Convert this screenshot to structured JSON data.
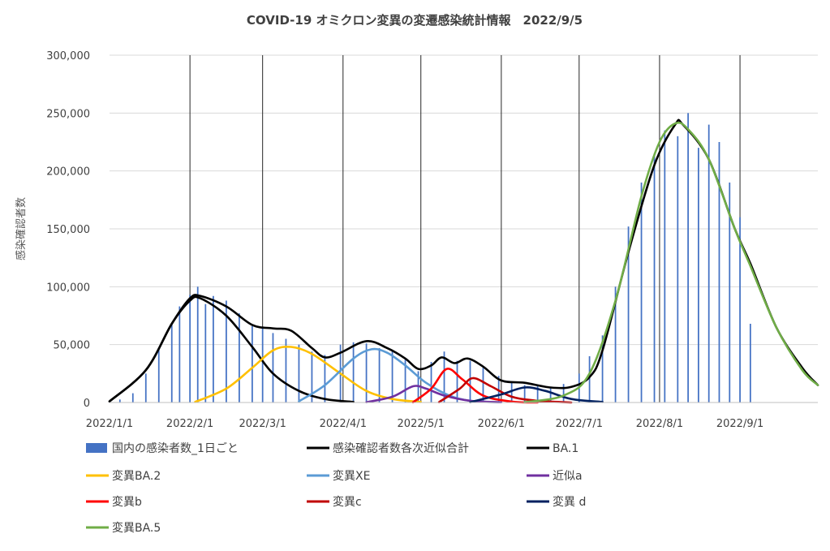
{
  "chart_data": {
    "type": "bar+line",
    "title": "COVID-19 オミクロン変異の変遷感染統計情報　2022/9/5",
    "ylabel": "感染確認者数",
    "xlabel": "",
    "ylim": [
      0,
      300000
    ],
    "yticks": [
      "0",
      "50,000",
      "100,000",
      "150,000",
      "200,000",
      "250,000",
      "300,000"
    ],
    "ytick_values": [
      0,
      50000,
      100000,
      150000,
      200000,
      250000,
      300000
    ],
    "xlim": [
      "2022-01-01",
      "2022-10-01"
    ],
    "xticks": [
      "2022/1/1",
      "2022/2/1",
      "2022/3/1",
      "2022/4/1",
      "2022/5/1",
      "2022/6/1",
      "2022/7/1",
      "2022/8/1",
      "2022/9/1"
    ],
    "xtick_dates": [
      "2022-01-01",
      "2022-02-01",
      "2022-03-01",
      "2022-04-01",
      "2022-05-01",
      "2022-06-01",
      "2022-07-01",
      "2022-08-01",
      "2022-09-01"
    ],
    "grid": "horizontal gridlines, vertical lines at month starts",
    "legend_position": "bottom",
    "bar_series": {
      "name": "国内の感染者数_1日ごと",
      "color": "#4472C4",
      "points": [
        [
          "2022-01-01",
          500
        ],
        [
          "2022-01-05",
          2600
        ],
        [
          "2022-01-10",
          8000
        ],
        [
          "2022-01-15",
          25000
        ],
        [
          "2022-01-20",
          46000
        ],
        [
          "2022-01-25",
          68000
        ],
        [
          "2022-01-28",
          83000
        ],
        [
          "2022-02-01",
          93000
        ],
        [
          "2022-02-04",
          100000
        ],
        [
          "2022-02-07",
          85000
        ],
        [
          "2022-02-10",
          92000
        ],
        [
          "2022-02-15",
          88000
        ],
        [
          "2022-02-20",
          77000
        ],
        [
          "2022-02-25",
          66000
        ],
        [
          "2022-03-01",
          64000
        ],
        [
          "2022-03-05",
          60000
        ],
        [
          "2022-03-10",
          55000
        ],
        [
          "2022-03-15",
          50000
        ],
        [
          "2022-03-20",
          44000
        ],
        [
          "2022-03-25",
          41000
        ],
        [
          "2022-03-31",
          50000
        ],
        [
          "2022-04-05",
          52000
        ],
        [
          "2022-04-10",
          51000
        ],
        [
          "2022-04-15",
          47000
        ],
        [
          "2022-04-20",
          44000
        ],
        [
          "2022-04-25",
          37000
        ],
        [
          "2022-04-30",
          27000
        ],
        [
          "2022-05-05",
          35000
        ],
        [
          "2022-05-10",
          44000
        ],
        [
          "2022-05-15",
          36000
        ],
        [
          "2022-05-20",
          36000
        ],
        [
          "2022-05-25",
          30000
        ],
        [
          "2022-05-31",
          23000
        ],
        [
          "2022-06-05",
          17000
        ],
        [
          "2022-06-10",
          15000
        ],
        [
          "2022-06-15",
          14000
        ],
        [
          "2022-06-20",
          13000
        ],
        [
          "2022-06-25",
          16000
        ],
        [
          "2022-07-01",
          25000
        ],
        [
          "2022-07-05",
          40000
        ],
        [
          "2022-07-10",
          58000
        ],
        [
          "2022-07-15",
          100000
        ],
        [
          "2022-07-20",
          152000
        ],
        [
          "2022-07-25",
          190000
        ],
        [
          "2022-07-30",
          215000
        ],
        [
          "2022-08-03",
          235000
        ],
        [
          "2022-08-08",
          230000
        ],
        [
          "2022-08-12",
          250000
        ],
        [
          "2022-08-16",
          220000
        ],
        [
          "2022-08-20",
          240000
        ],
        [
          "2022-08-24",
          225000
        ],
        [
          "2022-08-28",
          190000
        ],
        [
          "2022-09-01",
          160000
        ],
        [
          "2022-09-05",
          68000
        ]
      ]
    },
    "series": [
      {
        "name": "感染確認者数各次近似合計",
        "color": "#000000",
        "points": [
          [
            "2022-01-01",
            1000
          ],
          [
            "2022-01-15",
            28000
          ],
          [
            "2022-01-25",
            68000
          ],
          [
            "2022-02-01",
            90000
          ],
          [
            "2022-02-05",
            92000
          ],
          [
            "2022-02-15",
            83000
          ],
          [
            "2022-02-25",
            67000
          ],
          [
            "2022-03-05",
            64000
          ],
          [
            "2022-03-12",
            62000
          ],
          [
            "2022-03-20",
            47000
          ],
          [
            "2022-03-25",
            39000
          ],
          [
            "2022-03-31",
            43000
          ],
          [
            "2022-04-10",
            53000
          ],
          [
            "2022-04-18",
            47000
          ],
          [
            "2022-04-25",
            38000
          ],
          [
            "2022-04-30",
            29000
          ],
          [
            "2022-05-05",
            32000
          ],
          [
            "2022-05-09",
            39000
          ],
          [
            "2022-05-14",
            34000
          ],
          [
            "2022-05-19",
            38000
          ],
          [
            "2022-05-25",
            31000
          ],
          [
            "2022-06-01",
            19000
          ],
          [
            "2022-06-10",
            17000
          ],
          [
            "2022-06-20",
            13000
          ],
          [
            "2022-06-28",
            13500
          ],
          [
            "2022-07-05",
            22000
          ],
          [
            "2022-07-10",
            45000
          ],
          [
            "2022-07-20",
            130000
          ],
          [
            "2022-07-30",
            205000
          ],
          [
            "2022-08-07",
            240000
          ],
          [
            "2022-08-10",
            240000
          ],
          [
            "2022-08-20",
            210000
          ],
          [
            "2022-08-30",
            150000
          ],
          [
            "2022-09-05",
            120000
          ],
          [
            "2022-09-15",
            65000
          ],
          [
            "2022-09-25",
            30000
          ],
          [
            "2022-10-01",
            15000
          ]
        ]
      },
      {
        "name": "BA.1",
        "color": "#000000",
        "points": [
          [
            "2022-01-01",
            1000
          ],
          [
            "2022-01-15",
            28000
          ],
          [
            "2022-01-25",
            68000
          ],
          [
            "2022-02-01",
            88000
          ],
          [
            "2022-02-05",
            90000
          ],
          [
            "2022-02-15",
            75000
          ],
          [
            "2022-02-25",
            48000
          ],
          [
            "2022-03-05",
            25000
          ],
          [
            "2022-03-15",
            10000
          ],
          [
            "2022-03-25",
            3000
          ],
          [
            "2022-04-05",
            500
          ]
        ]
      },
      {
        "name": "変異BA.2",
        "color": "#FFC000",
        "points": [
          [
            "2022-02-03",
            500
          ],
          [
            "2022-02-15",
            12000
          ],
          [
            "2022-02-25",
            30000
          ],
          [
            "2022-03-05",
            45000
          ],
          [
            "2022-03-12",
            48000
          ],
          [
            "2022-03-20",
            42000
          ],
          [
            "2022-03-31",
            25000
          ],
          [
            "2022-04-10",
            10000
          ],
          [
            "2022-04-20",
            3000
          ],
          [
            "2022-05-01",
            500
          ]
        ]
      },
      {
        "name": "変異XE",
        "color": "#5B9BD5",
        "points": [
          [
            "2022-03-15",
            1000
          ],
          [
            "2022-03-25",
            15000
          ],
          [
            "2022-04-05",
            38000
          ],
          [
            "2022-04-12",
            46000
          ],
          [
            "2022-04-18",
            43000
          ],
          [
            "2022-04-25",
            32000
          ],
          [
            "2022-05-03",
            17000
          ],
          [
            "2022-05-12",
            6000
          ],
          [
            "2022-05-20",
            1500
          ],
          [
            "2022-05-31",
            200
          ]
        ]
      },
      {
        "name": "近似a",
        "color": "#7030A0",
        "points": [
          [
            "2022-04-10",
            300
          ],
          [
            "2022-04-20",
            5000
          ],
          [
            "2022-04-28",
            14000
          ],
          [
            "2022-05-03",
            12000
          ],
          [
            "2022-05-10",
            6000
          ],
          [
            "2022-05-20",
            1500
          ],
          [
            "2022-06-01",
            200
          ]
        ]
      },
      {
        "name": "変異b",
        "color": "#FF0000",
        "points": [
          [
            "2022-04-28",
            200
          ],
          [
            "2022-05-05",
            12000
          ],
          [
            "2022-05-11",
            29000
          ],
          [
            "2022-05-17",
            20000
          ],
          [
            "2022-05-25",
            6000
          ],
          [
            "2022-06-05",
            800
          ],
          [
            "2022-06-15",
            0
          ]
        ]
      },
      {
        "name": "変異c",
        "color": "#C00000",
        "points": [
          [
            "2022-05-08",
            300
          ],
          [
            "2022-05-16",
            12000
          ],
          [
            "2022-05-21",
            21000
          ],
          [
            "2022-05-28",
            14000
          ],
          [
            "2022-06-05",
            5000
          ],
          [
            "2022-06-15",
            1500
          ],
          [
            "2022-06-28",
            0
          ]
        ]
      },
      {
        "name": "変異 d",
        "color": "#002060",
        "points": [
          [
            "2022-05-20",
            300
          ],
          [
            "2022-06-01",
            7000
          ],
          [
            "2022-06-10",
            13000
          ],
          [
            "2022-06-18",
            10000
          ],
          [
            "2022-06-28",
            3000
          ],
          [
            "2022-07-10",
            500
          ]
        ]
      },
      {
        "name": "変異BA.5",
        "color": "#70AD47",
        "points": [
          [
            "2022-06-10",
            200
          ],
          [
            "2022-06-25",
            6000
          ],
          [
            "2022-07-05",
            25000
          ],
          [
            "2022-07-15",
            88000
          ],
          [
            "2022-07-25",
            178000
          ],
          [
            "2022-08-01",
            225000
          ],
          [
            "2022-08-07",
            241000
          ],
          [
            "2022-08-12",
            236000
          ],
          [
            "2022-08-20",
            210000
          ],
          [
            "2022-08-30",
            150000
          ],
          [
            "2022-09-05",
            118000
          ],
          [
            "2022-09-15",
            65000
          ],
          [
            "2022-09-25",
            28000
          ],
          [
            "2022-10-01",
            15000
          ]
        ]
      }
    ],
    "legend": [
      {
        "label": "国内の感染者数_1日ごと",
        "kind": "bar",
        "color": "#4472C4"
      },
      {
        "label": "感染確認者数各次近似合計",
        "kind": "line",
        "color": "#000000"
      },
      {
        "label": "BA.1",
        "kind": "line",
        "color": "#000000"
      },
      {
        "label": "変異BA.2",
        "kind": "line",
        "color": "#FFC000"
      },
      {
        "label": "変異XE",
        "kind": "line",
        "color": "#5B9BD5"
      },
      {
        "label": "近似a",
        "kind": "line",
        "color": "#7030A0"
      },
      {
        "label": "変異b",
        "kind": "line",
        "color": "#FF0000"
      },
      {
        "label": "変異c",
        "kind": "line",
        "color": "#C00000"
      },
      {
        "label": "変異 d",
        "kind": "line",
        "color": "#002060"
      },
      {
        "label": "変異BA.5",
        "kind": "line",
        "color": "#70AD47"
      }
    ]
  }
}
